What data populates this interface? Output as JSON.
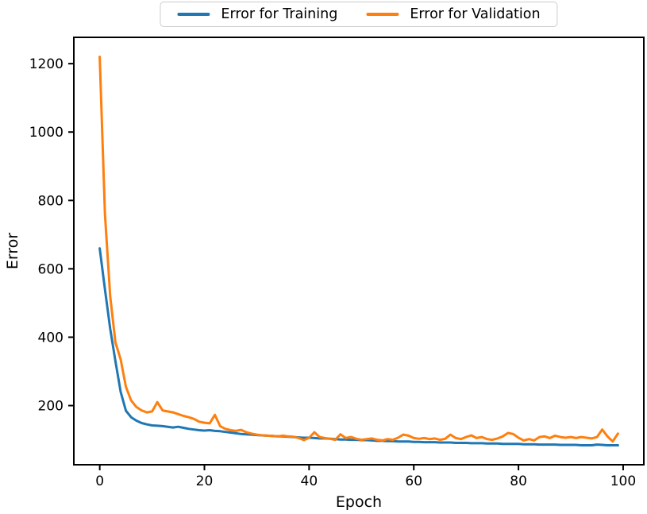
{
  "figure": {
    "background": "#ffffff"
  },
  "chart_data": {
    "type": "line",
    "title": "",
    "xlabel": "Epoch",
    "ylabel": "Error",
    "grid": false,
    "x": {
      "start": 0,
      "step": 1,
      "count": 100
    },
    "series": [
      {
        "name": "Error for Training",
        "color": "#1f77b4",
        "values": [
          660,
          540,
          425,
          330,
          240,
          185,
          166,
          156,
          149,
          145,
          142,
          141,
          140,
          138,
          136,
          138,
          135,
          132,
          130,
          128,
          127,
          128,
          126,
          125,
          123,
          121,
          119,
          117,
          116,
          115,
          114,
          113,
          112,
          111,
          110,
          110,
          109,
          108,
          107,
          106,
          106,
          105,
          104,
          104,
          103,
          102,
          101,
          101,
          100,
          100,
          99,
          99,
          98,
          97,
          97,
          96,
          96,
          95,
          95,
          95,
          94,
          94,
          93,
          93,
          93,
          92,
          92,
          92,
          91,
          91,
          91,
          90,
          90,
          90,
          89,
          89,
          89,
          88,
          88,
          88,
          88,
          87,
          87,
          87,
          86,
          86,
          86,
          86,
          85,
          85,
          85,
          85,
          84,
          84,
          84,
          86,
          85,
          84,
          84,
          84
        ]
      },
      {
        "name": "Error for Validation",
        "color": "#ff7f0e",
        "values": [
          1220,
          760,
          520,
          385,
          335,
          255,
          215,
          196,
          186,
          180,
          183,
          210,
          186,
          183,
          180,
          175,
          170,
          166,
          161,
          153,
          150,
          148,
          173,
          140,
          132,
          128,
          126,
          129,
          122,
          118,
          115,
          113,
          112,
          111,
          110,
          112,
          110,
          109,
          105,
          99,
          106,
          122,
          108,
          105,
          103,
          100,
          116,
          105,
          108,
          103,
          100,
          102,
          104,
          100,
          98,
          102,
          100,
          106,
          115,
          112,
          105,
          103,
          105,
          102,
          104,
          100,
          103,
          115,
          105,
          102,
          108,
          113,
          105,
          108,
          102,
          100,
          104,
          110,
          120,
          117,
          106,
          98,
          102,
          98,
          108,
          110,
          105,
          112,
          108,
          106,
          108,
          105,
          108,
          106,
          104,
          108,
          130,
          110,
          95,
          118
        ]
      }
    ],
    "xlim": [
      -4.95,
      103.95
    ],
    "ylim": [
      27,
      1277
    ],
    "xticks": [
      0,
      20,
      40,
      60,
      80,
      100
    ],
    "yticks": [
      200,
      400,
      600,
      800,
      1000,
      1200
    ],
    "legend": {
      "position": "top-center-outside",
      "entries": [
        {
          "label": "Error for Training"
        },
        {
          "label": "Error for Validation"
        }
      ]
    },
    "style": {
      "spine_color": "#000000",
      "tick_color": "#000000",
      "legend_border_color": "#cccccc",
      "line_width": 3
    }
  }
}
